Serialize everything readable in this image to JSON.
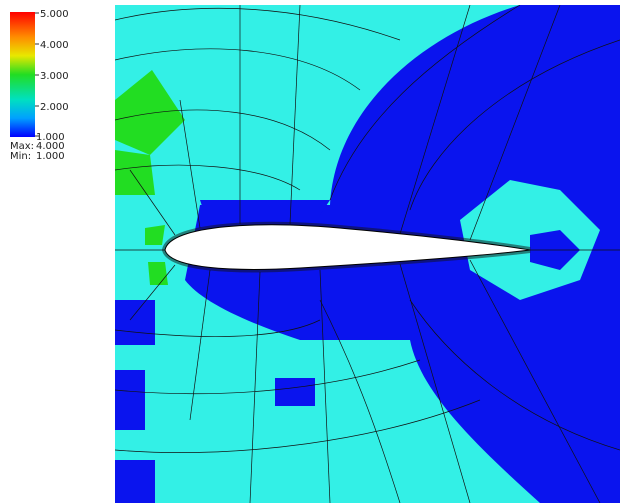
{
  "colorbar": {
    "ticks": [
      "5.000",
      "4.000",
      "3.000",
      "2.000",
      "1.000"
    ],
    "max_label": "Max:",
    "max": "4.000",
    "min_label": "Min:",
    "min": "1.000"
  }
}
